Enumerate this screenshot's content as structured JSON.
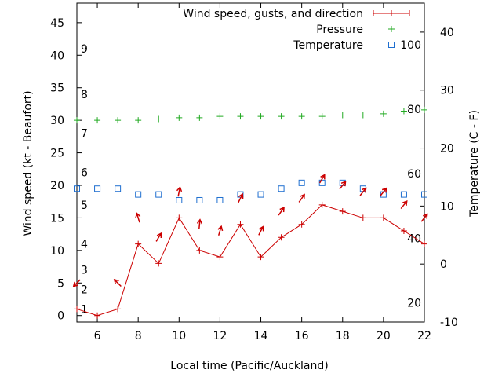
{
  "chart_data": {
    "type": "line",
    "title": "",
    "xlabel": "Local time (Pacific/Auckland)",
    "ylabel_left": "Wind speed (kt - Beaufort)",
    "ylabel_right": "Temperature (C - F)",
    "xlim": [
      5,
      22
    ],
    "ylim_left": [
      -1,
      48
    ],
    "ylim_right": [
      -10,
      45
    ],
    "x_ticks": [
      6,
      8,
      10,
      12,
      14,
      16,
      18,
      20,
      22
    ],
    "y_left_ticks": [
      0,
      5,
      10,
      15,
      20,
      25,
      30,
      35,
      40,
      45
    ],
    "y_right_ticks": [
      -10,
      0,
      10,
      20,
      30,
      40
    ],
    "beaufort_labels": [
      {
        "label": "1",
        "knots": 1
      },
      {
        "label": "2",
        "knots": 4
      },
      {
        "label": "3",
        "knots": 7
      },
      {
        "label": "4",
        "knots": 11
      },
      {
        "label": "5",
        "knots": 17
      },
      {
        "label": "6",
        "knots": 22
      },
      {
        "label": "7",
        "knots": 28
      },
      {
        "label": "8",
        "knots": 34
      },
      {
        "label": "9",
        "knots": 41
      }
    ],
    "fahrenheit_labels": [
      {
        "label": "20",
        "celsius": -6.7
      },
      {
        "label": "40",
        "celsius": 4.4
      },
      {
        "label": "60",
        "celsius": 15.6
      },
      {
        "label": "80",
        "celsius": 26.7
      },
      {
        "label": "100",
        "celsius": 37.8
      }
    ],
    "legend": [
      {
        "name": "Wind speed, gusts, and direction",
        "color": "#cc0000",
        "marker": "plus-line"
      },
      {
        "name": "Pressure",
        "color": "#22aa22",
        "marker": "plus"
      },
      {
        "name": "Temperature",
        "color": "#1f6fd0",
        "marker": "square"
      }
    ],
    "series": [
      {
        "name": "Wind speed",
        "axis": "left",
        "x": [
          5,
          6,
          7,
          8,
          9,
          10,
          11,
          12,
          13,
          14,
          15,
          16,
          17,
          18,
          19,
          20,
          21,
          22
        ],
        "values": [
          1,
          0,
          1,
          11,
          8,
          15,
          10,
          9,
          14,
          9,
          12,
          14,
          17,
          16,
          15,
          15,
          13,
          11
        ]
      },
      {
        "name": "Pressure",
        "axis": "left",
        "x": [
          5,
          6,
          7,
          8,
          9,
          10,
          11,
          12,
          13,
          14,
          15,
          16,
          17,
          18,
          19,
          20,
          21,
          22
        ],
        "values": [
          30,
          30,
          30,
          30,
          30.2,
          30.4,
          30.4,
          30.6,
          30.6,
          30.6,
          30.6,
          30.6,
          30.6,
          30.8,
          30.8,
          31,
          31.4,
          31.6
        ]
      },
      {
        "name": "Temperature",
        "axis": "right",
        "x": [
          5,
          6,
          7,
          8,
          9,
          10,
          11,
          12,
          13,
          14,
          15,
          16,
          17,
          18,
          19,
          20,
          21,
          22
        ],
        "values": [
          13,
          13,
          13,
          12,
          12,
          11,
          11,
          11,
          12,
          12,
          13,
          14,
          14,
          14,
          13,
          12,
          12,
          12
        ]
      },
      {
        "name": "Gusts",
        "axis": "left",
        "x": [
          5,
          7,
          8,
          9,
          10,
          11,
          12,
          13,
          14,
          15,
          16,
          17,
          18,
          19,
          20,
          21,
          22
        ],
        "values": [
          5,
          5,
          15,
          12,
          19,
          14,
          13,
          18,
          13,
          16,
          18,
          21,
          20,
          19,
          19,
          17,
          15
        ]
      }
    ],
    "wind_direction_arrows": [
      {
        "x": 5,
        "gust": 5,
        "dx": -1,
        "dy": 1
      },
      {
        "x": 7,
        "gust": 5,
        "dx": -1,
        "dy": -1
      },
      {
        "x": 8,
        "gust": 15,
        "dx": -0.3,
        "dy": -1
      },
      {
        "x": 9,
        "gust": 12,
        "dx": 0.6,
        "dy": -1
      },
      {
        "x": 10,
        "gust": 19,
        "dx": 0.2,
        "dy": -1
      },
      {
        "x": 11,
        "gust": 14,
        "dx": 0.1,
        "dy": -1
      },
      {
        "x": 12,
        "gust": 13,
        "dx": 0.3,
        "dy": -1
      },
      {
        "x": 13,
        "gust": 18,
        "dx": 0.5,
        "dy": -1
      },
      {
        "x": 14,
        "gust": 13,
        "dx": 0.5,
        "dy": -1
      },
      {
        "x": 15,
        "gust": 16,
        "dx": 0.7,
        "dy": -1
      },
      {
        "x": 16,
        "gust": 18,
        "dx": 0.7,
        "dy": -1
      },
      {
        "x": 17,
        "gust": 21,
        "dx": 0.6,
        "dy": -1
      },
      {
        "x": 18,
        "gust": 20,
        "dx": 0.8,
        "dy": -1
      },
      {
        "x": 19,
        "gust": 19,
        "dx": 0.8,
        "dy": -1
      },
      {
        "x": 20,
        "gust": 19,
        "dx": 0.8,
        "dy": -1
      },
      {
        "x": 21,
        "gust": 17,
        "dx": 0.8,
        "dy": -1
      },
      {
        "x": 22,
        "gust": 15,
        "dx": 0.8,
        "dy": -1
      }
    ]
  }
}
